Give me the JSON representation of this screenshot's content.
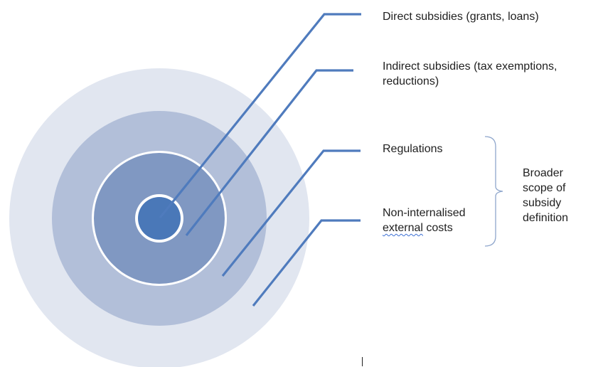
{
  "colors": {
    "ring_outer": "#e1e6f0",
    "ring_2": "#b2bfd9",
    "ring_3": "#8098c2",
    "core": "#4a78b8",
    "ring_gap": "#ffffff",
    "leader_line": "#4f7bbd",
    "brace": "#8ea6cc",
    "text": "#1f1f1f",
    "spellcheck_underline": "#3b6fd4"
  },
  "layers": [
    {
      "label": "Direct subsidies (grants, loans)"
    },
    {
      "label_line1": "Indirect subsidies (tax exemptions,",
      "label_line2": "reductions)"
    },
    {
      "label": "Regulations"
    },
    {
      "label_line1_prefix": "Non-internalised",
      "label_line2_word": "external",
      "label_line2_rest": " costs"
    }
  ],
  "bracket": {
    "line1": "Broader",
    "line2": "scope of",
    "line3": "subsidy",
    "line4": "definition"
  }
}
